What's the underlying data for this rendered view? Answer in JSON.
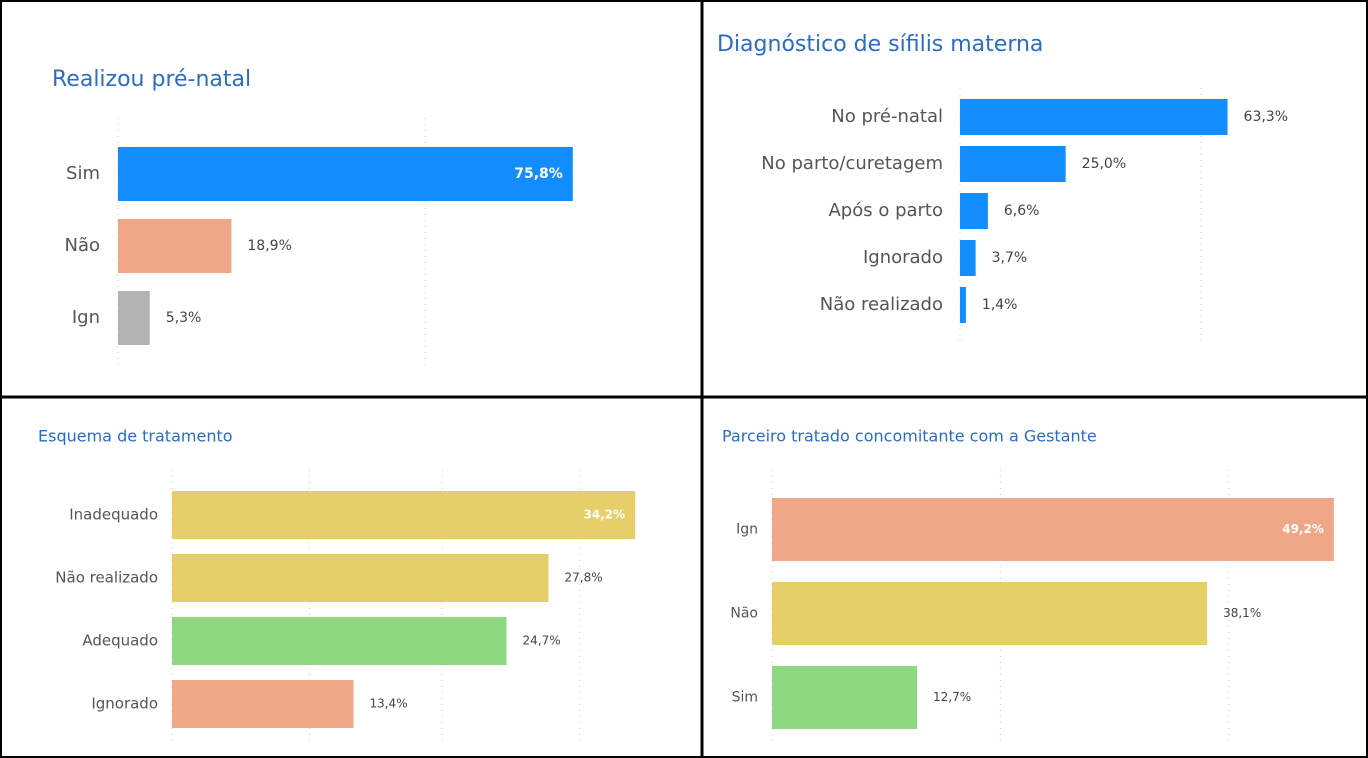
{
  "chart_data": [
    {
      "type": "bar",
      "orientation": "horizontal",
      "title": "Realizou pré-natal",
      "categories": [
        "Sim",
        "Não",
        "Ign"
      ],
      "values": [
        75.8,
        18.9,
        5.3
      ],
      "value_labels": [
        "75,8%",
        "18,9%",
        "5,3%"
      ],
      "colors": [
        "#118dff",
        "#f0a788",
        "#b3b3b3"
      ],
      "xlim": [
        0,
        80
      ]
    },
    {
      "type": "bar",
      "orientation": "horizontal",
      "title": "Diagnóstico de sífilis materna",
      "categories": [
        "No pré-natal",
        "No parto/curetagem",
        "Após o parto",
        "Ignorado",
        "Não realizado"
      ],
      "values": [
        63.3,
        25.0,
        6.6,
        3.7,
        1.4
      ],
      "value_labels": [
        "63,3%",
        "25,0%",
        "6,6%",
        "3,7%",
        "1,4%"
      ],
      "colors": [
        "#118dff",
        "#118dff",
        "#118dff",
        "#118dff",
        "#118dff"
      ],
      "xlim": [
        0,
        75
      ]
    },
    {
      "type": "bar",
      "orientation": "horizontal",
      "title": "Esquema de tratamento",
      "categories": [
        "Inadequado",
        "Não realizado",
        "Adequado",
        "Ignorado"
      ],
      "values": [
        34.2,
        27.8,
        24.7,
        13.4
      ],
      "value_labels": [
        "34,2%",
        "27,8%",
        "24,7%",
        "13,4%"
      ],
      "colors": [
        "#e6cf68",
        "#e6cf68",
        "#8fd882",
        "#f0a788"
      ],
      "xlim": [
        0,
        35
      ]
    },
    {
      "type": "bar",
      "orientation": "horizontal",
      "title": "Parceiro tratado concomitante com a Gestante",
      "categories": [
        "Ign",
        "Não",
        "Sim"
      ],
      "values": [
        49.2,
        38.1,
        12.7
      ],
      "value_labels": [
        "49,2%",
        "38,1%",
        "12,7%"
      ],
      "colors": [
        "#f0a788",
        "#e6cf68",
        "#8fd882"
      ],
      "xlim": [
        0,
        50
      ]
    }
  ]
}
